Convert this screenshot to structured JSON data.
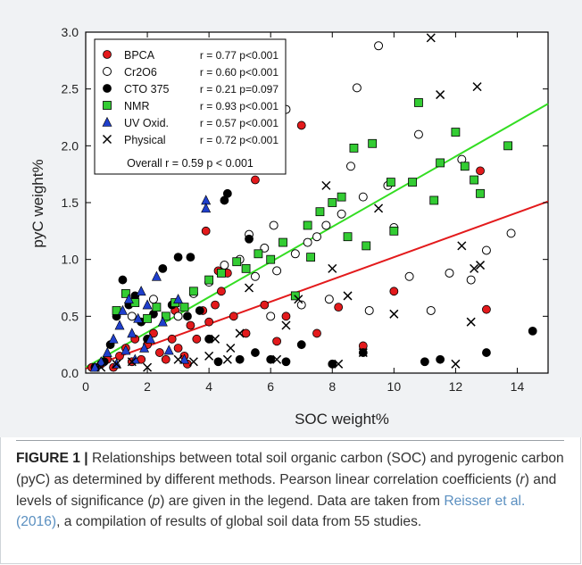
{
  "chart_data": {
    "type": "scatter",
    "xlabel": "SOC weight%",
    "ylabel": "pyC  weight%",
    "xlim": [
      0,
      15
    ],
    "ylim": [
      0,
      3.0
    ],
    "xticks": [
      0,
      2,
      4,
      6,
      8,
      10,
      12,
      14
    ],
    "yticks": [
      "0.0",
      "0.5",
      "1.0",
      "1.5",
      "2.0",
      "2.5",
      "3.0"
    ],
    "legend_position": "top-left",
    "legend": [
      {
        "name": "BPCA",
        "stat": "r = 0.77 p<0.001",
        "marker": "circle-filled",
        "color": "#e31a1c"
      },
      {
        "name": "Cr2O6",
        "stat": "r = 0.60 p<0.001",
        "marker": "circle-open",
        "color": "#000000"
      },
      {
        "name": "CTO 375",
        "stat": "r = 0.21 p=0.097",
        "marker": "circle-filled",
        "color": "#000000"
      },
      {
        "name": "NMR",
        "stat": "r = 0.93 p<0.001",
        "marker": "square",
        "color": "#33cc33"
      },
      {
        "name": "UV Oxid.",
        "stat": "r = 0.57 p<0.001",
        "marker": "triangle",
        "color": "#1f3fcc"
      },
      {
        "name": "Physical",
        "stat": "r = 0.72 p<0.001",
        "marker": "x",
        "color": "#000000"
      }
    ],
    "overall": "Overall r = 0.59 p < 0.001",
    "regression_lines": [
      {
        "series": "NMR",
        "color": "#33dd22",
        "x": [
          0,
          15
        ],
        "y": [
          0.05,
          2.37
        ]
      },
      {
        "series": "BPCA",
        "color": "#e31a1c",
        "x": [
          0,
          15
        ],
        "y": [
          0.04,
          1.51
        ]
      }
    ],
    "series": [
      {
        "name": "BPCA",
        "points": [
          [
            0.2,
            0.05
          ],
          [
            0.5,
            0.08
          ],
          [
            0.7,
            0.12
          ],
          [
            0.9,
            0.05
          ],
          [
            1.1,
            0.15
          ],
          [
            1.3,
            0.22
          ],
          [
            1.5,
            0.1
          ],
          [
            1.6,
            0.3
          ],
          [
            1.8,
            0.12
          ],
          [
            2.0,
            0.25
          ],
          [
            2.2,
            0.35
          ],
          [
            2.4,
            0.18
          ],
          [
            2.6,
            0.12
          ],
          [
            2.8,
            0.3
          ],
          [
            3.0,
            0.22
          ],
          [
            3.2,
            0.15
          ],
          [
            3.4,
            0.42
          ],
          [
            3.6,
            0.3
          ],
          [
            3.8,
            0.55
          ],
          [
            4.0,
            0.45
          ],
          [
            4.2,
            0.6
          ],
          [
            4.4,
            0.72
          ],
          [
            4.6,
            0.88
          ],
          [
            4.8,
            0.5
          ],
          [
            5.2,
            0.35
          ],
          [
            5.5,
            1.7
          ],
          [
            5.8,
            0.6
          ],
          [
            6.2,
            0.28
          ],
          [
            6.5,
            0.5
          ],
          [
            7.0,
            2.18
          ],
          [
            7.5,
            0.35
          ],
          [
            8.2,
            0.58
          ],
          [
            9.0,
            0.24
          ],
          [
            10.0,
            0.72
          ],
          [
            12.8,
            1.78
          ],
          [
            13.0,
            0.56
          ],
          [
            3.9,
            1.25
          ],
          [
            4.3,
            0.9
          ],
          [
            2.9,
            0.55
          ],
          [
            3.3,
            0.08
          ]
        ]
      },
      {
        "name": "Cr2O6",
        "points": [
          [
            1.5,
            0.5
          ],
          [
            2.2,
            0.65
          ],
          [
            3.0,
            0.5
          ],
          [
            3.5,
            0.7
          ],
          [
            4.0,
            0.8
          ],
          [
            4.5,
            0.95
          ],
          [
            5.0,
            1.0
          ],
          [
            5.5,
            0.85
          ],
          [
            5.8,
            1.1
          ],
          [
            6.2,
            0.9
          ],
          [
            6.5,
            2.32
          ],
          [
            6.8,
            1.05
          ],
          [
            7.2,
            1.15
          ],
          [
            7.5,
            1.2
          ],
          [
            7.8,
            1.3
          ],
          [
            8.3,
            1.4
          ],
          [
            8.6,
            1.82
          ],
          [
            8.8,
            2.51
          ],
          [
            9.0,
            1.55
          ],
          [
            9.5,
            2.88
          ],
          [
            9.8,
            1.65
          ],
          [
            10.0,
            1.28
          ],
          [
            10.5,
            0.85
          ],
          [
            10.8,
            2.1
          ],
          [
            11.2,
            0.55
          ],
          [
            11.8,
            0.88
          ],
          [
            12.2,
            1.88
          ],
          [
            12.5,
            0.82
          ],
          [
            13.0,
            1.08
          ],
          [
            13.8,
            1.23
          ],
          [
            6.0,
            0.5
          ],
          [
            7.0,
            0.6
          ],
          [
            7.9,
            0.65
          ],
          [
            9.2,
            0.55
          ],
          [
            5.3,
            1.22
          ],
          [
            6.1,
            1.3
          ]
        ]
      },
      {
        "name": "CTO 375",
        "points": [
          [
            0.3,
            0.05
          ],
          [
            0.6,
            0.1
          ],
          [
            0.8,
            0.25
          ],
          [
            1.0,
            0.5
          ],
          [
            1.2,
            0.82
          ],
          [
            1.4,
            0.6
          ],
          [
            1.6,
            0.68
          ],
          [
            1.8,
            0.45
          ],
          [
            2.0,
            0.3
          ],
          [
            2.2,
            0.52
          ],
          [
            2.5,
            0.92
          ],
          [
            2.8,
            0.6
          ],
          [
            3.0,
            1.02
          ],
          [
            3.3,
            0.5
          ],
          [
            3.7,
            0.55
          ],
          [
            4.0,
            0.3
          ],
          [
            4.3,
            0.1
          ],
          [
            4.6,
            1.58
          ],
          [
            5.0,
            0.12
          ],
          [
            5.5,
            0.18
          ],
          [
            6.0,
            0.12
          ],
          [
            6.5,
            0.1
          ],
          [
            7.0,
            0.25
          ],
          [
            8.0,
            0.08
          ],
          [
            9.0,
            0.18
          ],
          [
            11.0,
            0.1
          ],
          [
            11.5,
            0.12
          ],
          [
            13.0,
            0.18
          ],
          [
            14.5,
            0.37
          ],
          [
            4.5,
            1.52
          ],
          [
            5.3,
            1.18
          ],
          [
            3.4,
            1.02
          ]
        ]
      },
      {
        "name": "NMR",
        "points": [
          [
            1.0,
            0.55
          ],
          [
            1.3,
            0.7
          ],
          [
            1.6,
            0.62
          ],
          [
            2.0,
            0.48
          ],
          [
            2.3,
            0.58
          ],
          [
            2.6,
            0.5
          ],
          [
            2.9,
            0.62
          ],
          [
            3.2,
            0.58
          ],
          [
            3.5,
            0.72
          ],
          [
            4.0,
            0.82
          ],
          [
            4.4,
            0.88
          ],
          [
            4.9,
            0.98
          ],
          [
            5.2,
            0.92
          ],
          [
            5.6,
            1.05
          ],
          [
            6.0,
            1.0
          ],
          [
            6.4,
            1.15
          ],
          [
            6.8,
            0.68
          ],
          [
            7.2,
            1.3
          ],
          [
            7.6,
            1.42
          ],
          [
            8.0,
            1.5
          ],
          [
            8.3,
            1.55
          ],
          [
            8.7,
            1.98
          ],
          [
            9.1,
            1.12
          ],
          [
            9.3,
            2.02
          ],
          [
            10.0,
            1.25
          ],
          [
            10.6,
            1.68
          ],
          [
            10.8,
            2.38
          ],
          [
            11.5,
            1.85
          ],
          [
            12.0,
            2.12
          ],
          [
            12.3,
            1.82
          ],
          [
            12.6,
            1.7
          ],
          [
            12.8,
            1.58
          ],
          [
            13.7,
            2.0
          ],
          [
            7.3,
            1.02
          ],
          [
            8.5,
            1.2
          ],
          [
            9.9,
            1.68
          ],
          [
            11.3,
            1.52
          ]
        ]
      },
      {
        "name": "UV Oxid.",
        "points": [
          [
            0.3,
            0.05
          ],
          [
            0.5,
            0.1
          ],
          [
            0.7,
            0.18
          ],
          [
            0.9,
            0.3
          ],
          [
            1.1,
            0.42
          ],
          [
            1.2,
            0.55
          ],
          [
            1.3,
            0.2
          ],
          [
            1.4,
            0.65
          ],
          [
            1.5,
            0.35
          ],
          [
            1.6,
            0.12
          ],
          [
            1.7,
            0.48
          ],
          [
            1.8,
            0.72
          ],
          [
            1.9,
            0.22
          ],
          [
            2.0,
            0.6
          ],
          [
            2.1,
            0.3
          ],
          [
            2.3,
            0.85
          ],
          [
            2.5,
            0.45
          ],
          [
            2.7,
            0.2
          ],
          [
            3.0,
            0.65
          ],
          [
            3.2,
            0.12
          ],
          [
            3.9,
            1.52
          ],
          [
            3.9,
            1.45
          ],
          [
            1.0,
            0.08
          ]
        ]
      },
      {
        "name": "Physical",
        "points": [
          [
            0.5,
            0.05
          ],
          [
            1.0,
            0.08
          ],
          [
            1.5,
            0.1
          ],
          [
            2.0,
            0.05
          ],
          [
            3.0,
            0.12
          ],
          [
            3.5,
            0.1
          ],
          [
            4.0,
            0.15
          ],
          [
            4.2,
            0.3
          ],
          [
            4.7,
            0.22
          ],
          [
            5.0,
            0.35
          ],
          [
            5.3,
            0.75
          ],
          [
            6.2,
            0.12
          ],
          [
            7.8,
            1.65
          ],
          [
            8.0,
            0.92
          ],
          [
            8.2,
            0.08
          ],
          [
            8.5,
            0.68
          ],
          [
            9.0,
            0.18
          ],
          [
            9.5,
            1.45
          ],
          [
            10.0,
            0.52
          ],
          [
            11.2,
            2.95
          ],
          [
            11.5,
            2.45
          ],
          [
            12.0,
            0.08
          ],
          [
            12.2,
            1.12
          ],
          [
            12.5,
            0.45
          ],
          [
            12.8,
            0.95
          ],
          [
            12.7,
            2.52
          ],
          [
            12.6,
            0.92
          ],
          [
            6.5,
            0.42
          ],
          [
            6.9,
            0.65
          ],
          [
            4.6,
            0.12
          ]
        ]
      }
    ]
  },
  "caption": {
    "label": "FIGURE 1 |",
    "text_1": " Relationships between total soil organic carbon (SOC) and pyrogenic carbon (pyC) as determined by different methods. Pearson linear correlation coefficients (",
    "r": "r",
    "text_2": ") and levels of significance (",
    "p": "p",
    "text_3": ") are given in the legend. Data are taken from ",
    "citation": "Reisser et al. (2016)",
    "text_4": ", a compilation of results of global soil data from 55 studies."
  }
}
